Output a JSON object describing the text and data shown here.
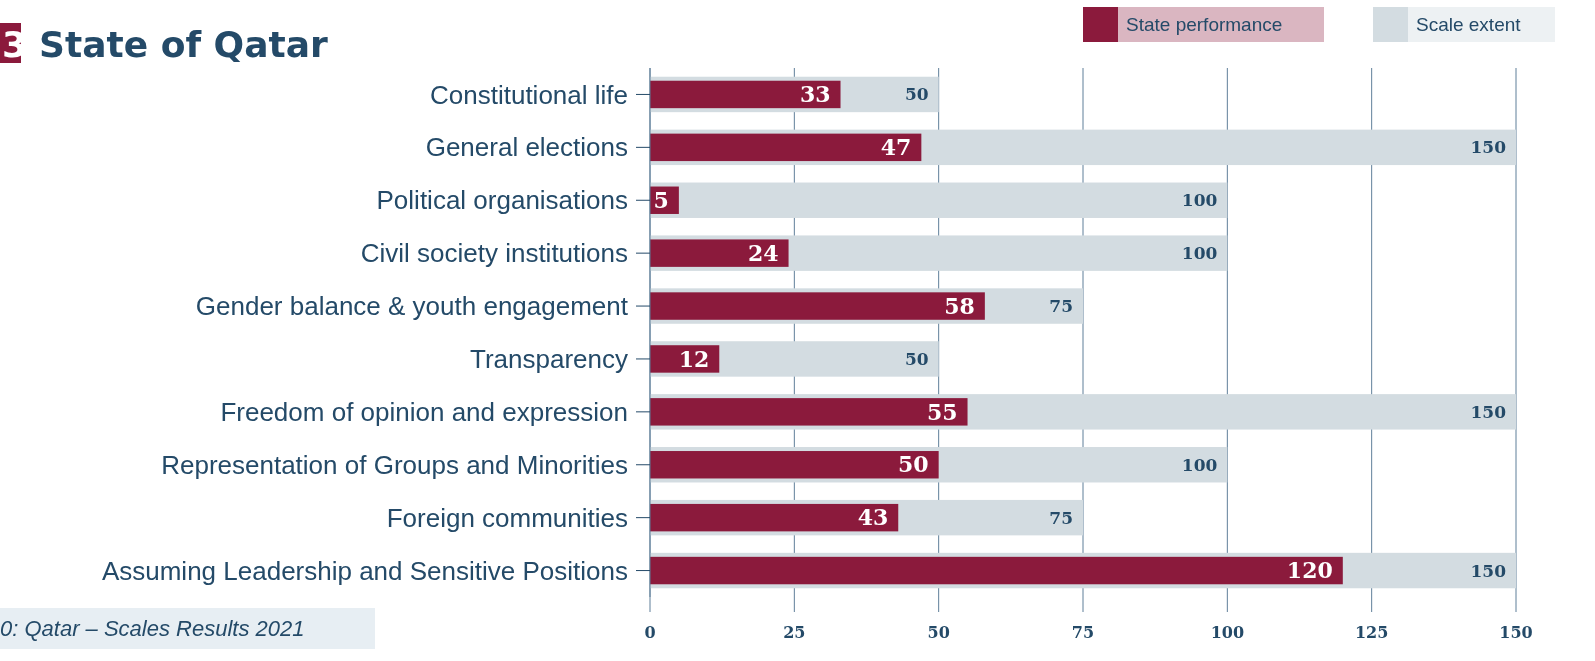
{
  "chart_data": {
    "type": "bar",
    "orientation": "horizontal",
    "title": "3 State of Qatar",
    "categories": [
      "Constitutional life",
      "General elections",
      "Political organisations",
      "Civil society institutions",
      "Gender balance & youth engagement",
      "Transparency",
      "Freedom of opinion and expression",
      "Representation of Groups and Minorities",
      "Foreign communities",
      "Assuming Leadership and Sensitive Positions"
    ],
    "series": [
      {
        "name": "State performance",
        "color": "#8b1a3c",
        "values": [
          33,
          47,
          5,
          24,
          58,
          12,
          55,
          50,
          43,
          120
        ]
      },
      {
        "name": "Scale extent",
        "color": "#d3dce1",
        "values": [
          50,
          150,
          100,
          100,
          75,
          50,
          150,
          100,
          75,
          150
        ]
      }
    ],
    "xlim": [
      0,
      150
    ],
    "xticks": [
      0,
      25,
      50,
      75,
      100,
      125,
      150
    ],
    "grid": "x",
    "legend": "top right",
    "data_labels": true,
    "annotations": [
      "0: Qatar – Scales Results 2021"
    ]
  }
}
